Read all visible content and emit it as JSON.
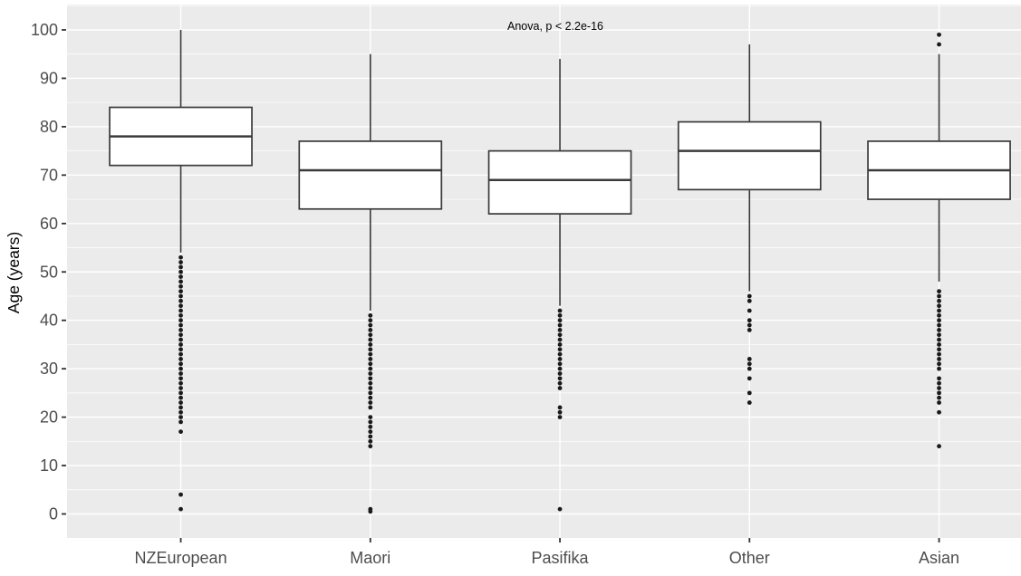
{
  "figure": {
    "ylabel": "Age (years)",
    "annotation": "Anova, p < 2.2e-16"
  },
  "chart_data": {
    "type": "boxplot",
    "title": "",
    "annotation": "Anova, p < 2.2e-16",
    "xlabel": "",
    "ylabel": "Age (years)",
    "ylim": [
      -5,
      105
    ],
    "yticks": [
      0,
      10,
      20,
      30,
      40,
      50,
      60,
      70,
      80,
      90,
      100
    ],
    "grid": true,
    "legend": false,
    "categories": [
      "NZEuropean",
      "Maori",
      "Pasifika",
      "Other",
      "Asian"
    ],
    "series": [
      {
        "name": "NZEuropean",
        "whisker_low": 54,
        "q1": 72,
        "median": 78,
        "q3": 84,
        "whisker_high": 100,
        "outliers": [
          53,
          52,
          51,
          50,
          49,
          48,
          47,
          46,
          45,
          44,
          43,
          42,
          41,
          40,
          39,
          38,
          37,
          36,
          35,
          34,
          33,
          32,
          31,
          30,
          29,
          28,
          27,
          26,
          25,
          24,
          23,
          22,
          21,
          20,
          19,
          17,
          4,
          1
        ]
      },
      {
        "name": "Maori",
        "whisker_low": 42,
        "q1": 63,
        "median": 71,
        "q3": 77,
        "whisker_high": 95,
        "outliers": [
          41,
          40,
          39,
          38,
          37,
          36,
          35,
          34,
          33,
          32,
          31,
          30,
          29,
          28,
          27,
          26,
          25,
          24,
          23,
          22,
          20,
          19,
          18,
          17,
          16,
          15,
          14,
          1,
          0.5
        ]
      },
      {
        "name": "Pasifika",
        "whisker_low": 43,
        "q1": 62,
        "median": 69,
        "q3": 75,
        "whisker_high": 94,
        "outliers": [
          42,
          41,
          40,
          39,
          38,
          37,
          36,
          35,
          34,
          33,
          32,
          31,
          30,
          29,
          28,
          27,
          26,
          22,
          21,
          20,
          1
        ]
      },
      {
        "name": "Other",
        "whisker_low": 46,
        "q1": 67,
        "median": 75,
        "q3": 81,
        "whisker_high": 97,
        "outliers": [
          45,
          44,
          42,
          40,
          39,
          38,
          32,
          31,
          30,
          28,
          25,
          23
        ]
      },
      {
        "name": "Asian",
        "whisker_low": 48,
        "q1": 65,
        "median": 71,
        "q3": 77,
        "whisker_high": 95,
        "outliers": [
          99,
          97,
          46,
          45,
          44,
          43,
          42,
          41,
          40,
          39,
          38,
          37,
          36,
          35,
          34,
          33,
          32,
          31,
          30,
          28,
          27,
          26,
          25,
          24,
          23,
          21,
          14
        ]
      }
    ],
    "colors": {
      "panel_bg": "#EBEBEB",
      "grid": "#FFFFFF",
      "box_fill": "#FFFFFF",
      "box_line": "#3A3A3A",
      "outlier_dot": "#1A1A1A",
      "tick_label": "#4D4D4D",
      "tick_mark": "#333333",
      "axis_title": "#000000"
    }
  }
}
